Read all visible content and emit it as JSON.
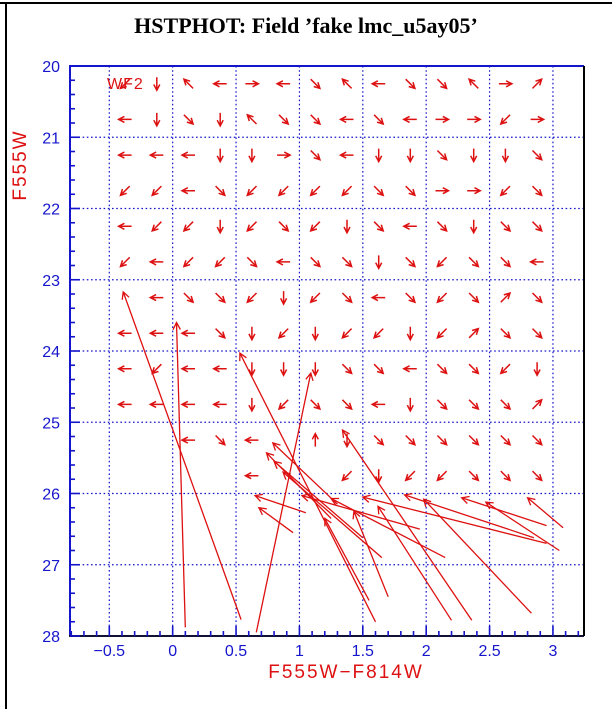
{
  "title": "HSTPHOT: Field ’fake lmc_u5ay05’",
  "plot": {
    "camera_label": "WF2",
    "colors": {
      "arrow_red": "#dd1111",
      "axis_blue": "#1515cc",
      "frame_right_black": "#000000",
      "title_black": "#000000"
    },
    "x_axis": {
      "label": "F555W−F814W",
      "tick_labels": [
        "−0.5",
        "0",
        "0.5",
        "1",
        "1.5",
        "2",
        "2.5",
        "3"
      ],
      "tick_values": [
        -0.5,
        0,
        0.5,
        1,
        1.5,
        2,
        2.5,
        3
      ],
      "minor_step": 0.1,
      "min": -0.81,
      "max": 3.245
    },
    "y_axis": {
      "label": "F555W",
      "tick_labels": [
        "20",
        "21",
        "22",
        "23",
        "24",
        "25",
        "26",
        "27",
        "28"
      ],
      "tick_values": [
        20,
        21,
        22,
        23,
        24,
        25,
        26,
        27,
        28
      ],
      "minor_step": 0.2,
      "min": 20,
      "max": 28,
      "inverted": true
    }
  },
  "chart_data": {
    "type": "scatter",
    "subtype": "quiver",
    "title": "HSTPHOT: Field ’fake lmc_u5ay05’",
    "xlabel": "F555W−F814W",
    "ylabel": "F555W",
    "xlim": [
      -0.81,
      3.245
    ],
    "ylim": [
      28,
      20
    ],
    "grid": "dotted blue at integer magnitudes 21-27 and colors -0.5 to 3.0 step 0.5",
    "legend": "none",
    "quiver_grid": {
      "comment": "small photometric-shift arrows on a regular grid; direction = compass heading of arrowhead",
      "columns": [
        -0.375,
        -0.125,
        0.125,
        0.375,
        0.625,
        0.875,
        1.125,
        1.375,
        1.625,
        1.875,
        2.125,
        2.375,
        2.625,
        2.875
      ],
      "rows": [
        20.25,
        20.75,
        21.25,
        21.75,
        22.25,
        22.75,
        23.25,
        23.75,
        24.25,
        24.75,
        25.25,
        25.75
      ],
      "directions": [
        [
          "SW",
          "S",
          "NW",
          "W",
          "E",
          "W",
          "SE",
          "NW",
          "W",
          "SE",
          "SE",
          "NW",
          "E",
          "NE"
        ],
        [
          "W",
          "S",
          "SE",
          "S",
          "NW",
          "SE",
          "SE",
          "W",
          "SE",
          "W",
          "E",
          "E",
          "SW",
          "E"
        ],
        [
          "W",
          "W",
          "W",
          "S",
          "S",
          "E",
          "SE",
          "W",
          "S",
          "S",
          "SE",
          "S",
          "S",
          "SE"
        ],
        [
          "SW",
          "SW",
          "W",
          "SE",
          "SW",
          "SW",
          "SW",
          "SW",
          "SE",
          "SE",
          "E",
          "E",
          "SW",
          "SE"
        ],
        [
          "W",
          "SW",
          "SW",
          "S",
          "SW",
          "SE",
          "SW",
          "S",
          "SE",
          "W",
          "SE",
          "S",
          "SE",
          "SE"
        ],
        [
          "SW",
          "W",
          "SW",
          "SW",
          "SE",
          "W",
          "SE",
          "SE",
          "S",
          "SE",
          "SW",
          "SE",
          "SE",
          "W"
        ],
        [
          null,
          "W",
          "SE",
          "SE",
          "SW",
          "S",
          "SW",
          "SE",
          "W",
          "SE",
          "SW",
          "SE",
          "NE",
          "SE"
        ],
        [
          "W",
          "W",
          "W",
          "SE",
          "S",
          "SW",
          "S",
          "SW",
          "SW",
          "S",
          "SW",
          "NE",
          "SE",
          "SE"
        ],
        [
          "W",
          "SW",
          "W",
          "W",
          "S",
          "S",
          "S",
          "SE",
          "SE",
          "W",
          "SE",
          "SE",
          "SW",
          "S"
        ],
        [
          "W",
          "W",
          "W",
          "W",
          "S",
          "SW",
          "SE",
          "SE",
          "W",
          "S",
          "SE",
          "SE",
          "SE",
          "NE"
        ],
        [
          null,
          null,
          "W",
          "SE",
          "W",
          null,
          "N",
          "S",
          "SE",
          "SE",
          "SE",
          "SE",
          "SE",
          "SE"
        ],
        [
          null,
          null,
          null,
          null,
          "W",
          null,
          null,
          "SW",
          "S",
          "SW",
          "SW",
          "SE",
          "SE",
          "SE"
        ]
      ]
    },
    "long_arrows": [
      {
        "head": [
          0.03,
          23.6
        ],
        "tail": [
          0.1,
          27.88
        ]
      },
      {
        "head": [
          -0.39,
          23.17
        ],
        "tail": [
          0.54,
          27.77
        ]
      },
      {
        "head": [
          0.53,
          24.03
        ],
        "tail": [
          1.6,
          27.8
        ]
      },
      {
        "head": [
          1.09,
          24.31
        ],
        "tail": [
          0.66,
          27.95
        ]
      },
      {
        "head": [
          1.34,
          25.11
        ],
        "tail": [
          2.36,
          27.78
        ]
      },
      {
        "head": [
          0.79,
          25.29
        ],
        "tail": [
          1.3,
          26.15
        ]
      },
      {
        "head": [
          0.74,
          25.43
        ],
        "tail": [
          1.25,
          26.35
        ]
      },
      {
        "head": [
          0.8,
          25.55
        ],
        "tail": [
          1.5,
          26.62
        ]
      },
      {
        "head": [
          0.87,
          25.7
        ],
        "tail": [
          1.65,
          26.9
        ]
      },
      {
        "head": [
          0.65,
          26.03
        ],
        "tail": [
          1.05,
          26.27
        ]
      },
      {
        "head": [
          0.68,
          26.2
        ],
        "tail": [
          0.95,
          26.55
        ]
      },
      {
        "head": [
          1.02,
          26.03
        ],
        "tail": [
          1.95,
          26.5
        ]
      },
      {
        "head": [
          1.25,
          26.07
        ],
        "tail": [
          2.15,
          26.9
        ]
      },
      {
        "head": [
          1.5,
          26.05
        ],
        "tail": [
          2.95,
          26.7
        ]
      },
      {
        "head": [
          1.43,
          26.25
        ],
        "tail": [
          1.7,
          27.45
        ]
      },
      {
        "head": [
          1.2,
          26.35
        ],
        "tail": [
          1.55,
          27.5
        ]
      },
      {
        "head": [
          1.62,
          26.18
        ],
        "tail": [
          2.2,
          27.78
        ]
      },
      {
        "head": [
          1.83,
          26.02
        ],
        "tail": [
          2.85,
          26.62
        ]
      },
      {
        "head": [
          1.98,
          26.08
        ],
        "tail": [
          2.83,
          27.68
        ]
      },
      {
        "head": [
          2.28,
          26.06
        ],
        "tail": [
          2.95,
          26.45
        ]
      },
      {
        "head": [
          2.47,
          26.12
        ],
        "tail": [
          3.05,
          26.8
        ]
      },
      {
        "head": [
          2.8,
          26.06
        ],
        "tail": [
          3.08,
          26.48
        ]
      }
    ]
  }
}
